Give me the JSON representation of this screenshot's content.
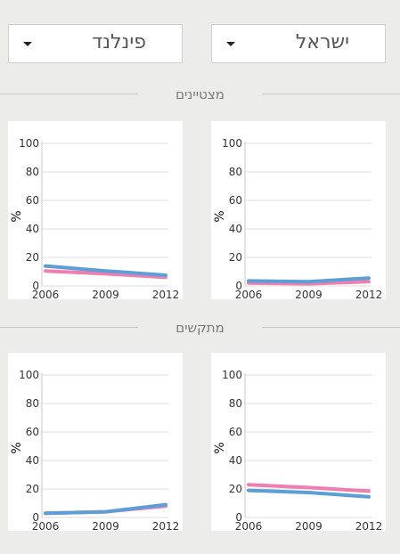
{
  "selectors": {
    "left": {
      "value": "פינלנד"
    },
    "right": {
      "value": "ישראל"
    }
  },
  "sections": [
    {
      "title": "מצטיינים"
    },
    {
      "title": "מתקשים"
    }
  ],
  "colors": {
    "pink": "#ee7fb0",
    "blue": "#5b9fd6",
    "grid": "#dddddd"
  },
  "chart_data": [
    {
      "type": "line",
      "section": "מצטיינים",
      "country": "פינלנד",
      "x": [
        2006,
        2009,
        2012
      ],
      "ylim": [
        0,
        100
      ],
      "yticks": [
        0,
        20,
        40,
        60,
        80,
        100
      ],
      "ylabel": "%",
      "series": [
        {
          "color": "pink",
          "values": [
            10.5,
            8.5,
            6
          ]
        },
        {
          "color": "blue",
          "values": [
            14,
            10.5,
            7.5
          ]
        }
      ]
    },
    {
      "type": "line",
      "section": "מצטיינים",
      "country": "ישראל",
      "x": [
        2006,
        2009,
        2012
      ],
      "ylim": [
        0,
        100
      ],
      "yticks": [
        0,
        20,
        40,
        60,
        80,
        100
      ],
      "ylabel": "%",
      "series": [
        {
          "color": "pink",
          "values": [
            2,
            1.5,
            3
          ]
        },
        {
          "color": "blue",
          "values": [
            3.5,
            3,
            5.5
          ]
        }
      ]
    },
    {
      "type": "line",
      "section": "מתקשים",
      "country": "פינלנד",
      "x": [
        2006,
        2009,
        2012
      ],
      "ylim": [
        0,
        100
      ],
      "yticks": [
        0,
        20,
        40,
        60,
        80,
        100
      ],
      "ylabel": "%",
      "series": [
        {
          "color": "pink",
          "values": [
            3,
            4,
            8
          ]
        },
        {
          "color": "blue",
          "values": [
            3,
            4,
            9
          ]
        }
      ]
    },
    {
      "type": "line",
      "section": "מתקשים",
      "country": "ישראל",
      "x": [
        2006,
        2009,
        2012
      ],
      "ylim": [
        0,
        100
      ],
      "yticks": [
        0,
        20,
        40,
        60,
        80,
        100
      ],
      "ylabel": "%",
      "series": [
        {
          "color": "pink",
          "values": [
            23,
            21,
            18.5
          ]
        },
        {
          "color": "blue",
          "values": [
            19,
            17.5,
            14.5
          ]
        }
      ]
    }
  ]
}
